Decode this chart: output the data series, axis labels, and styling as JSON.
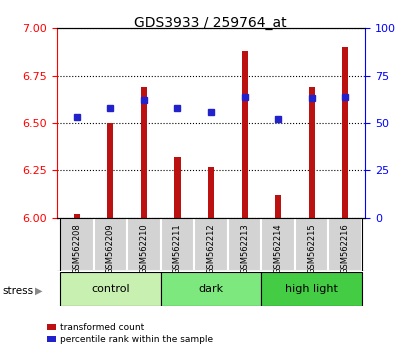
{
  "title": "GDS3933 / 259764_at",
  "samples": [
    "GSM562208",
    "GSM562209",
    "GSM562210",
    "GSM562211",
    "GSM562212",
    "GSM562213",
    "GSM562214",
    "GSM562215",
    "GSM562216"
  ],
  "red_values": [
    6.02,
    6.5,
    6.69,
    6.32,
    6.27,
    6.88,
    6.12,
    6.69,
    6.9
  ],
  "blue_values_pct": [
    53,
    58,
    62,
    58,
    56,
    64,
    52,
    63,
    64
  ],
  "ylim_left": [
    6.0,
    7.0
  ],
  "ylim_right": [
    0,
    100
  ],
  "yticks_left": [
    6.0,
    6.25,
    6.5,
    6.75,
    7.0
  ],
  "yticks_right": [
    0,
    25,
    50,
    75,
    100
  ],
  "groups": [
    {
      "label": "control",
      "indices": [
        0,
        1,
        2
      ],
      "color": "#c8f0b0"
    },
    {
      "label": "dark",
      "indices": [
        3,
        4,
        5
      ],
      "color": "#7de87d"
    },
    {
      "label": "high light",
      "indices": [
        6,
        7,
        8
      ],
      "color": "#44cc44"
    }
  ],
  "stress_label": "stress",
  "bar_color": "#bb1111",
  "dot_color": "#2222cc",
  "bar_width": 0.18,
  "background_color": "#ffffff",
  "plot_bg_color": "#ffffff",
  "label_fontsize": 8,
  "tick_fontsize": 8,
  "title_fontsize": 10
}
